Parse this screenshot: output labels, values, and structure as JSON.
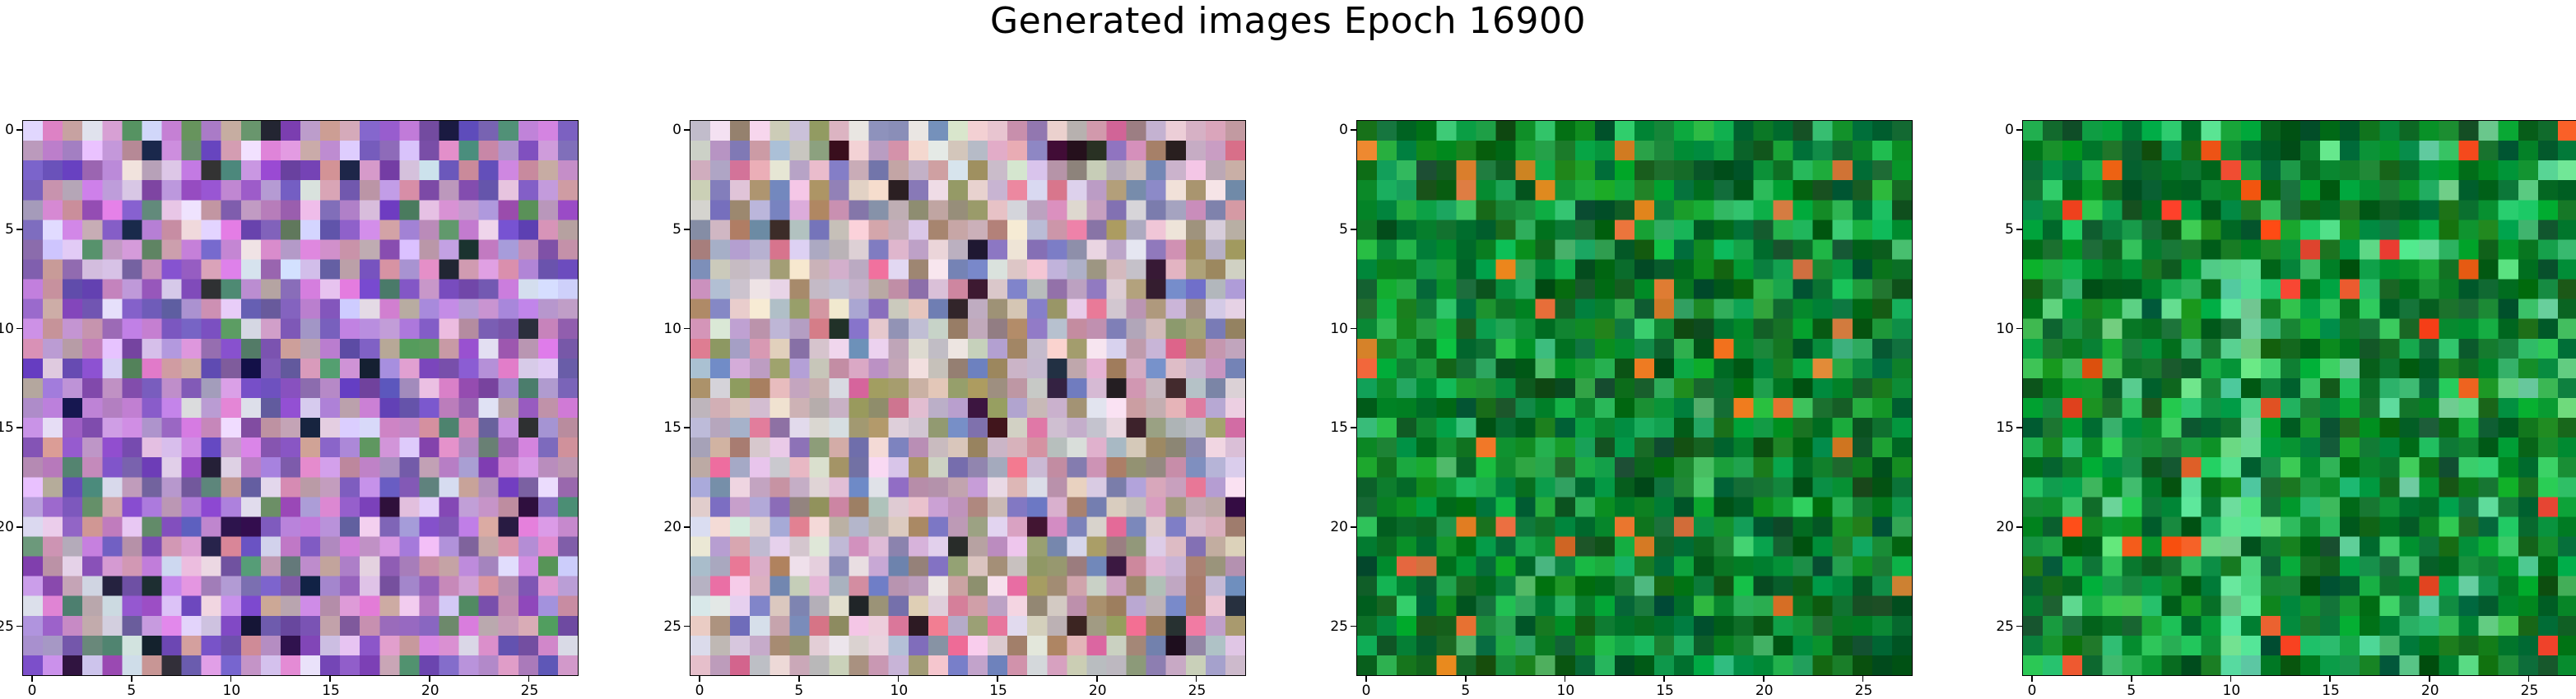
{
  "figure": {
    "title": "Generated images Epoch 16900"
  },
  "axes": {
    "grid_size": 28,
    "x_ticks": [
      "0",
      "5",
      "10",
      "15",
      "20",
      "25"
    ],
    "y_ticks": [
      "0",
      "5",
      "10",
      "15",
      "20",
      "25"
    ]
  },
  "panels": [
    {
      "palette": "purple-noise",
      "base_colors": [
        "#b48ccc",
        "#8a5cc0",
        "#d28ed8",
        "#c89aa8",
        "#7050b0",
        "#e0d0f0",
        "#5e8c6a",
        "#222040"
      ]
    },
    {
      "palette": "pastel-noise",
      "base_colors": [
        "#c8a0b4",
        "#b8b0c8",
        "#d8c0c8",
        "#a09070",
        "#e8d8e0",
        "#8080b8",
        "#e07898",
        "#302030"
      ]
    },
    {
      "palette": "green-noise",
      "base_colors": [
        "#0a8030",
        "#107a2e",
        "#0c9a3a",
        "#066020",
        "#20b050",
        "#0a5a24",
        "#40c070",
        "#e07830"
      ]
    },
    {
      "palette": "green-noise-stripe",
      "base_colors": [
        "#0a8a30",
        "#0f7c2c",
        "#0aa03c",
        "#056020",
        "#30c060",
        "#0a6a28",
        "#60d890",
        "#f05020"
      ]
    }
  ]
}
